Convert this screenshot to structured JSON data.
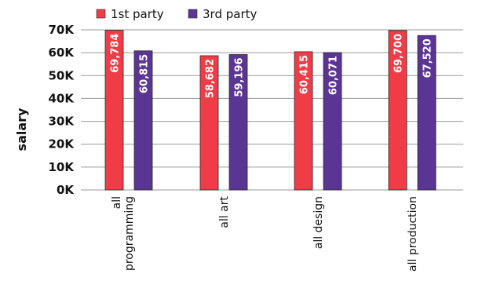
{
  "chart_data": {
    "type": "bar",
    "categories": [
      "all programming",
      "all art",
      "all design",
      "all production"
    ],
    "category_lines": [
      [
        "all",
        "programming"
      ],
      [
        "all art"
      ],
      [
        "all design"
      ],
      [
        "all production"
      ]
    ],
    "series": [
      {
        "name": "1st party",
        "values": [
          69784,
          58682,
          60415,
          69700
        ],
        "labels": [
          "69,784",
          "58,682",
          "60,415",
          "69,700"
        ],
        "color": "#f03c46"
      },
      {
        "name": "3rd party",
        "values": [
          60815,
          59196,
          60071,
          67520
        ],
        "labels": [
          "60,815",
          "59,196",
          "60,071",
          "67,520"
        ],
        "color": "#5b3594"
      }
    ],
    "title": "",
    "xlabel": "",
    "ylabel": "salary",
    "ylim": [
      0,
      70000
    ],
    "yticks": [
      0,
      10000,
      20000,
      30000,
      40000,
      50000,
      60000,
      70000
    ],
    "ytick_labels": [
      "0K",
      "10K",
      "20K",
      "30K",
      "40K",
      "50K",
      "60K",
      "70K"
    ],
    "grid": true,
    "legend": "top"
  }
}
